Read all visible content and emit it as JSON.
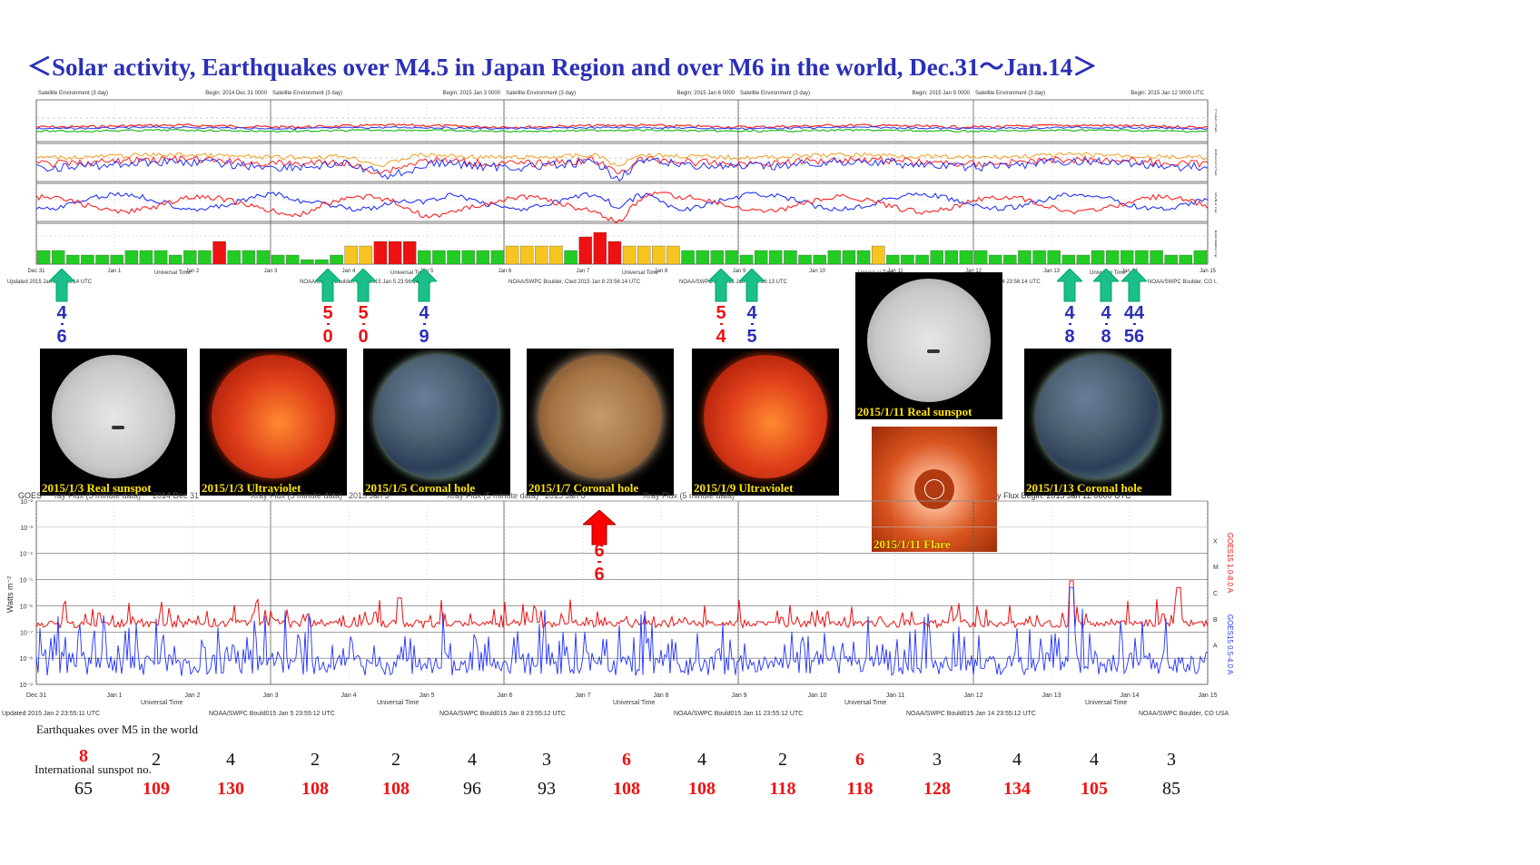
{
  "title": "＜Solar activity, Earthquakes over M4.5 in Japan Region and over M6 in the world, Dec.31～Jan.14＞",
  "satellite_panel": {
    "header_label": "Satellite Environment (3 day)",
    "begin_labels": [
      "Begin:  2014 Dec 31 0000",
      "Begin:  2015 Jan 3 0000",
      "Begin:  2015 Jan 6 0000",
      "Begin:  2015 Jan 9 0000",
      "Begin:  2015 Jan 12 0000 UTC"
    ],
    "right_labels": [
      "Proton Flux",
      "Electron Flux",
      "GOES Hp",
      "Estimated Kp"
    ],
    "kp_dates": [
      "Dec 31",
      "Jan 1",
      "Jan 2",
      "Jan 3",
      "Jan 4",
      "Jan 5",
      "Jan 6",
      "Jan 7",
      "Jan 8",
      "Jan 9",
      "Jan 10",
      "Jan 11",
      "Jan 12",
      "Jan 13",
      "Jan 14",
      "Jan 15"
    ],
    "universal_time": "Universal Time",
    "footer_left": "Updated 2015 Jan  2 23:56:14 UTC",
    "footer_mid1": "NOAA/SWPC Boulder, Cted 2015 Jan  5 23:56:14 UTC",
    "footer_mid2": "NOAA/SWPC Boulder, Cted 2015 Jan  8 23:56:14 UTC",
    "footer_mid3": "NOAA/SWPC Bo   2015 Jan 11 23:56:13 UTC",
    "footer_right": "14 23:56:14 UTC",
    "footer_end": "NOAA/SWPC Boulder, CO USA"
  },
  "japan_quakes": [
    {
      "top": "4",
      "bottom": "6",
      "color": "#2a30b8"
    },
    {
      "top": "5",
      "bottom": "0",
      "color": "#ee1111"
    },
    {
      "top": "5",
      "bottom": "0",
      "color": "#ee1111"
    },
    {
      "top": "4",
      "bottom": "9",
      "color": "#2a30b8"
    },
    {
      "top": "5",
      "bottom": "4",
      "color": "#ee1111"
    },
    {
      "top": "4",
      "bottom": "5",
      "color": "#2a30b8"
    },
    {
      "top": "4",
      "bottom": "8",
      "color": "#2a30b8"
    },
    {
      "top": "4",
      "bottom": "8",
      "color": "#2a30b8"
    },
    {
      "top": "44",
      "bottom": "56",
      "color": "#2a30b8"
    }
  ],
  "photos": [
    {
      "caption": "2015/1/3 Real  sunspot",
      "kind": "sunspot"
    },
    {
      "caption": "2015/1/3 Ultraviolet",
      "kind": "uv"
    },
    {
      "caption": "2015/1/5 Coronal  hole",
      "kind": "coronal"
    },
    {
      "caption": "2015/1/7 Coronal  hole",
      "kind": "coronal-gold"
    },
    {
      "caption": "2015/1/9 Ultraviolet",
      "kind": "uv"
    },
    {
      "caption": "2015/1/11 Real sunspot",
      "kind": "sunspot"
    },
    {
      "caption": "2015/1/11 Flare",
      "kind": "flare"
    },
    {
      "caption": "2015/1/13 Coronal hole",
      "kind": "coronal"
    }
  ],
  "xray_panel": {
    "header_left": "GOES",
    "header_labels": [
      "ray Flux (5 minute data)",
      "2014 Dec 31",
      "Xray Flux (5 minute data)",
      "2015 Jan 3",
      "Xray Flux (5 minute data)",
      "2015 Jan 6",
      "Xray Flux (5 minute data)"
    ],
    "header_right": "y Flux   Begin: 2015 Jan 12 0000 UTC",
    "ylabel": "Watts m⁻²",
    "right_label_red": "GOES15 1.0-8.0 A",
    "right_label_blue": "GOES15 0.5-4.0 A",
    "class_letters": [
      "X",
      "M",
      "C",
      "B",
      "A"
    ],
    "y_ticks": [
      "10⁻²",
      "10⁻³",
      "10⁻⁴",
      "10⁻⁵",
      "10⁻⁶",
      "10⁻⁷",
      "10⁻⁸",
      "10⁻⁹"
    ],
    "x_dates": [
      "Dec 31",
      "Jan 1",
      "Jan 2",
      "Jan 3",
      "Jan 4",
      "Jan 5",
      "Jan 6",
      "Jan 7",
      "Jan 8",
      "Jan 9",
      "Jan 10",
      "Jan 11",
      "Jan 12",
      "Jan 13",
      "Jan 14",
      "Jan 15"
    ],
    "universal_time": "Universal Time",
    "footer": [
      "Updated 2015 Jan  2 23:55:11 UTC",
      "NOAA/SWPC Bould015 Jan  5 23:55:12 UTC",
      "NOAA/SWPC Bould015 Jan  8 23:55:12 UTC",
      "NOAA/SWPC Bould015 Jan 11 23:55:12 UTC",
      "NOAA/SWPC Bould015 Jan 14 23:55:12 UTC",
      "NOAA/SWPC Boulder, CO USA"
    ],
    "red_event": {
      "top": "6",
      "bottom": "6"
    }
  },
  "world_quakes_label": "Earthquakes over M5 in the world",
  "sunspot_label": "International sunspot no.",
  "chart_data": {
    "type": "table",
    "title": "＜Solar activity, Earthquakes over M4.5 in Japan Region and over M6 in the world, Dec.31～Jan.14＞",
    "columns": [
      "Dec 31",
      "Jan 1",
      "Jan 2",
      "Jan 3",
      "Jan 4",
      "Jan 5",
      "Jan 6",
      "Jan 7",
      "Jan 8",
      "Jan 9",
      "Jan 10",
      "Jan 11",
      "Jan 12",
      "Jan 13",
      "Jan 14"
    ],
    "earthquakes_over_m5_world": [
      "8",
      "2",
      "4",
      "2",
      "2",
      "4",
      "3",
      "6",
      "4",
      "2",
      "6",
      "3",
      "4",
      "4",
      "3"
    ],
    "earthquakes_highlight": [
      true,
      false,
      false,
      false,
      false,
      false,
      false,
      true,
      false,
      false,
      true,
      false,
      false,
      false,
      false
    ],
    "international_sunspot_no": [
      "65",
      "109",
      "130",
      "108",
      "108",
      "96",
      "93",
      "108",
      "108",
      "118",
      "118",
      "128",
      "134",
      "105",
      "85"
    ],
    "sunspot_highlight": [
      false,
      true,
      true,
      true,
      true,
      false,
      false,
      true,
      true,
      true,
      true,
      true,
      true,
      true,
      false
    ],
    "kp_index": [
      3,
      3,
      2,
      2,
      2,
      2,
      3,
      3,
      3,
      2,
      3,
      3,
      5,
      3,
      3,
      3,
      2,
      2,
      1,
      1,
      2,
      4,
      4,
      5,
      5,
      5,
      3,
      3,
      3,
      3,
      3,
      3,
      4,
      4,
      4,
      4,
      3,
      6,
      7,
      5,
      4,
      4,
      4,
      4,
      3,
      3,
      3,
      3,
      2,
      3,
      3,
      3,
      2,
      2,
      3,
      3,
      3,
      4,
      2,
      2,
      2,
      3,
      3,
      3,
      3,
      2,
      2,
      3,
      3,
      3,
      2,
      2,
      3,
      3,
      3,
      3,
      3,
      2,
      2,
      3
    ]
  }
}
